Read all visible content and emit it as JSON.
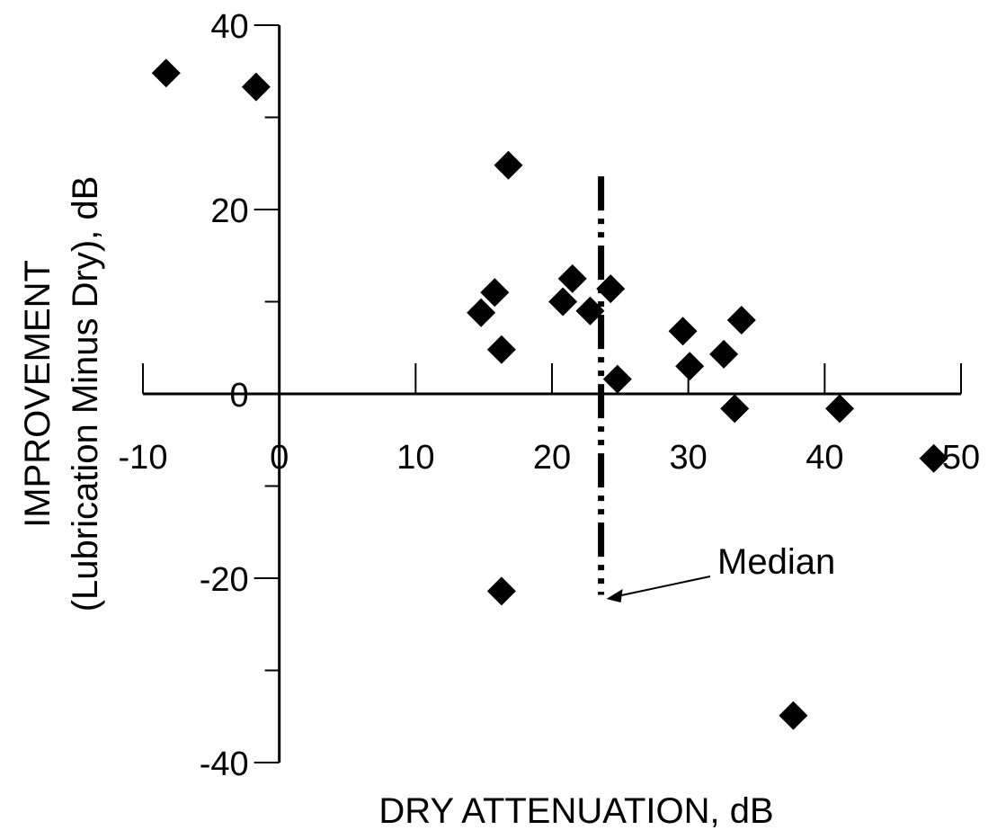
{
  "chart_data": {
    "type": "scatter",
    "xlabel": "DRY ATTENUATION, dB",
    "ylabel": "IMPROVEMENT",
    "ylabel2": "(Lubrication Minus Dry), dB",
    "xlim": [
      -10,
      50
    ],
    "ylim": [
      -40,
      40
    ],
    "xticks": [
      -10,
      0,
      10,
      20,
      30,
      40,
      50
    ],
    "yticks": [
      -40,
      -20,
      0,
      20,
      40
    ],
    "grid": false,
    "marker": "diamond",
    "points": [
      {
        "x": -8.3,
        "y": 34.8
      },
      {
        "x": -1.7,
        "y": 33.3
      },
      {
        "x": 16.8,
        "y": 24.8
      },
      {
        "x": 14.8,
        "y": 8.8
      },
      {
        "x": 15.8,
        "y": 11.0
      },
      {
        "x": 16.3,
        "y": 4.8
      },
      {
        "x": 20.8,
        "y": 10.0
      },
      {
        "x": 21.5,
        "y": 12.5
      },
      {
        "x": 22.8,
        "y": 9.0
      },
      {
        "x": 24.3,
        "y": 11.4
      },
      {
        "x": 24.8,
        "y": 1.6
      },
      {
        "x": 29.6,
        "y": 6.8
      },
      {
        "x": 30.1,
        "y": 3.0
      },
      {
        "x": 32.6,
        "y": 4.3
      },
      {
        "x": 33.9,
        "y": 8.0
      },
      {
        "x": 33.4,
        "y": -1.6
      },
      {
        "x": 41.1,
        "y": -1.6
      },
      {
        "x": 48.0,
        "y": -7.0
      },
      {
        "x": 16.3,
        "y": -21.4
      },
      {
        "x": 37.7,
        "y": -34.9
      }
    ],
    "median": {
      "x": 23.6,
      "y_range": [
        -21.8,
        23.6
      ],
      "label": "Median"
    }
  }
}
